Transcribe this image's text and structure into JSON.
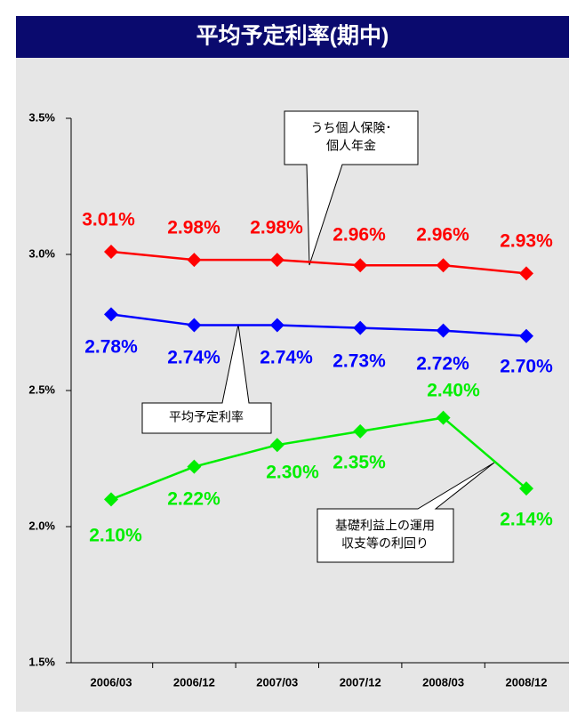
{
  "chart_data": {
    "type": "line",
    "title": "平均予定利率(期中)",
    "categories": [
      "2006/03",
      "2006/12",
      "2007/03",
      "2007/12",
      "2008/03",
      "2008/12"
    ],
    "ylim": [
      1.5,
      3.5
    ],
    "yticks": [
      {
        "value": 1.5,
        "label": "1.5%"
      },
      {
        "value": 2.0,
        "label": "2.0%"
      },
      {
        "value": 2.5,
        "label": "2.5%"
      },
      {
        "value": 3.0,
        "label": "3.0%"
      },
      {
        "value": 3.5,
        "label": "3.5%"
      }
    ],
    "series": [
      {
        "callout": [
          "うち個人保険･",
          "個人年金"
        ],
        "color": "#ff0000",
        "values": [
          3.01,
          2.98,
          2.98,
          2.96,
          2.96,
          2.93
        ],
        "value_labels": [
          "3.01%",
          "2.98%",
          "2.98%",
          "2.96%",
          "2.96%",
          "2.93%"
        ]
      },
      {
        "callout": [
          "平均予定利率"
        ],
        "color": "#0000ff",
        "values": [
          2.78,
          2.74,
          2.74,
          2.73,
          2.72,
          2.7
        ],
        "value_labels": [
          "2.78%",
          "2.74%",
          "2.74%",
          "2.73%",
          "2.72%",
          "2.70%"
        ]
      },
      {
        "callout": [
          "基礎利益上の運用",
          "収支等の利回り"
        ],
        "color": "#00ee00",
        "values": [
          2.1,
          2.22,
          2.3,
          2.35,
          2.4,
          2.14
        ],
        "value_labels": [
          "2.10%",
          "2.22%",
          "2.30%",
          "2.35%",
          "2.40%",
          "2.14%"
        ]
      }
    ]
  }
}
